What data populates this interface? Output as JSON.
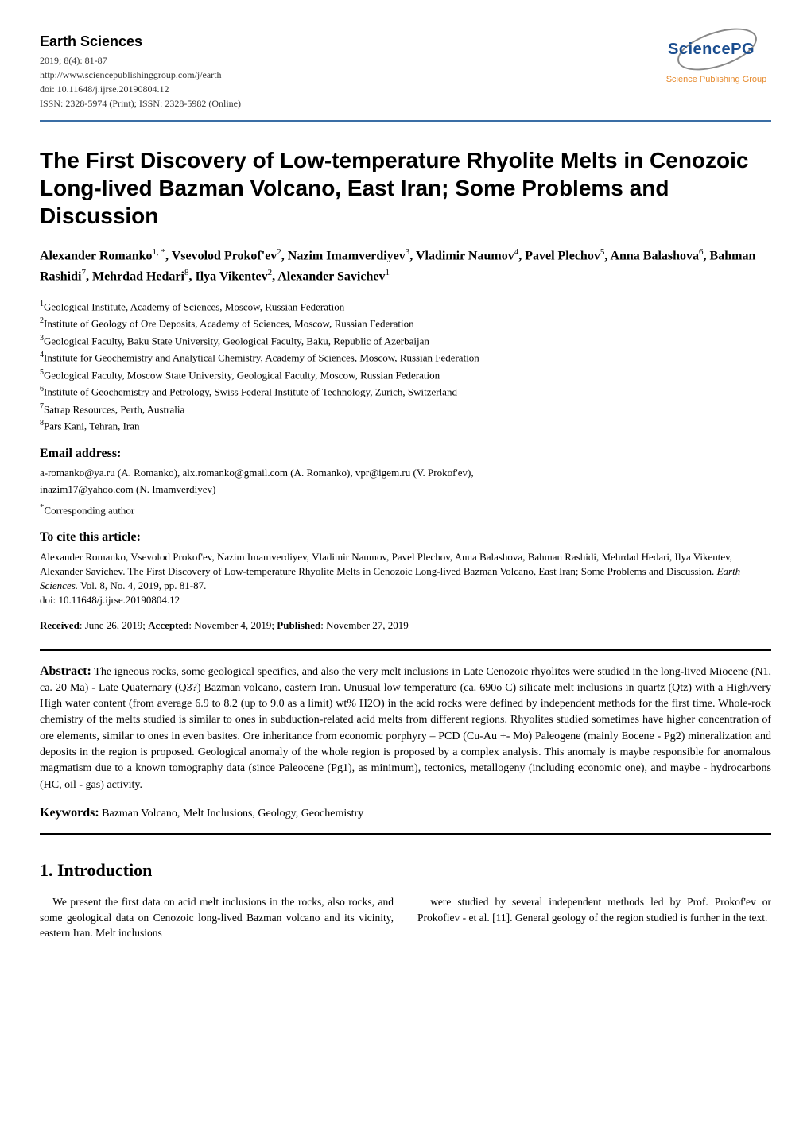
{
  "journal": {
    "name": "Earth Sciences",
    "issue": "2019; 8(4): 81-87",
    "url": "http://www.sciencepublishinggroup.com/j/earth",
    "doi": "doi: 10.11648/j.ijrse.20190804.12",
    "issn": "ISSN: 2328-5974 (Print); ISSN: 2328-5982 (Online)"
  },
  "logo": {
    "text": "SciencePG",
    "tagline": "Science Publishing Group",
    "text_color": "#1a4d8f",
    "tagline_color": "#e68a2e"
  },
  "colors": {
    "header_border": "#3a6ea5",
    "text": "#000000",
    "background": "#ffffff"
  },
  "title": "The First Discovery of Low-temperature Rhyolite Melts in Cenozoic Long-lived Bazman Volcano, East Iran; Some Problems and Discussion",
  "authors_html": "Alexander Romanko<sup>1, *</sup>, Vsevolod Prokof'ev<sup>2</sup>, Nazim Imamverdiyev<sup>3</sup>, Vladimir Naumov<sup>4</sup>, Pavel Plechov<sup>5</sup>, Anna Balashova<sup>6</sup>, Bahman Rashidi<sup>7</sup>, Mehrdad Hedari<sup>8</sup>, Ilya Vikentev<sup>2</sup>, Alexander Savichev<sup>1</sup>",
  "affiliations": [
    {
      "num": "1",
      "text": "Geological Institute, Academy of Sciences, Moscow, Russian Federation"
    },
    {
      "num": "2",
      "text": "Institute of Geology of Ore Deposits, Academy of Sciences, Moscow, Russian Federation"
    },
    {
      "num": "3",
      "text": "Geological Faculty, Baku State University, Geological Faculty, Baku, Republic of Azerbaijan"
    },
    {
      "num": "4",
      "text": "Institute for Geochemistry and Analytical Chemistry, Academy of Sciences, Moscow, Russian Federation"
    },
    {
      "num": "5",
      "text": "Geological Faculty, Moscow State University, Geological Faculty, Moscow, Russian Federation"
    },
    {
      "num": "6",
      "text": "Institute of Geochemistry and Petrology, Swiss Federal Institute of Technology, Zurich, Switzerland"
    },
    {
      "num": "7",
      "text": "Satrap Resources, Perth, Australia"
    },
    {
      "num": "8",
      "text": "Pars Kani, Tehran, Iran"
    }
  ],
  "emails": {
    "label": "Email address:",
    "line1": "a-romanko@ya.ru (A. Romanko), alx.romanko@gmail.com (A. Romanko), vpr@igem.ru (V. Prokof'ev),",
    "line2": "inazim17@yahoo.com (N. Imamverdiyev)"
  },
  "corresponding": "*Corresponding author",
  "citation": {
    "label": "To cite this article:",
    "body": "Alexander Romanko, Vsevolod Prokof'ev, Nazim Imamverdiyev, Vladimir Naumov, Pavel Plechov, Anna Balashova, Bahman Rashidi, Mehrdad Hedari, Ilya Vikentev, Alexander Savichev. The First Discovery of Low-temperature Rhyolite Melts in Cenozoic Long-lived Bazman Volcano, East Iran; Some Problems and Discussion. ",
    "journal": "Earth Sciences.",
    "tail": " Vol. 8, No. 4, 2019, pp. 81-87.",
    "doi": "doi: 10.11648/j.ijrse.20190804.12"
  },
  "dates": {
    "received_label": "Received",
    "received": "June 26, 2019",
    "accepted_label": "Accepted",
    "accepted": "November 4, 2019",
    "published_label": "Published",
    "published": "November 27, 2019"
  },
  "abstract": {
    "label": "Abstract:",
    "text": "The igneous rocks, some geological specifics, and also the very melt inclusions in Late Cenozoic rhyolites were studied in the long-lived Miocene (N1, ca. 20 Ma) - Late Quaternary (Q3?) Bazman volcano, eastern Iran. Unusual low temperature (ca. 690o C) silicate melt inclusions in quartz (Qtz) with a High/very High water content (from average 6.9 to 8.2 (up to 9.0 as a limit) wt% H2O) in the acid rocks were defined by independent methods for the first time. Whole-rock chemistry of the melts studied is similar to ones in subduction-related acid melts from different regions. Rhyolites studied sometimes have higher concentration of ore elements, similar to ones in even basites. Ore inheritance from economic porphyry – PCD (Cu-Au +- Mo) Paleogene (mainly Eocene - Pg2) mineralization and deposits in the region is proposed. Geological anomaly of the whole region is proposed by a complex analysis. This anomaly is maybe responsible for anomalous magmatism due to a known tomography data (since Paleocene (Pg1), as minimum), tectonics, metallogeny (including economic one), and maybe - hydrocarbons (HC, oil - gas) activity."
  },
  "keywords": {
    "label": "Keywords:",
    "text": "Bazman Volcano, Melt Inclusions, Geology, Geochemistry"
  },
  "section1": {
    "heading": "1. Introduction",
    "col1": "We present the first data on acid melt inclusions in the rocks, also rocks, and some geological data on Cenozoic long-lived Bazman volcano and its vicinity, eastern Iran. Melt inclusions",
    "col2": "were studied by several independent methods led by Prof. Prokof'ev or Prokofiev - et al. [11]. General geology of the region studied is further in the text."
  }
}
